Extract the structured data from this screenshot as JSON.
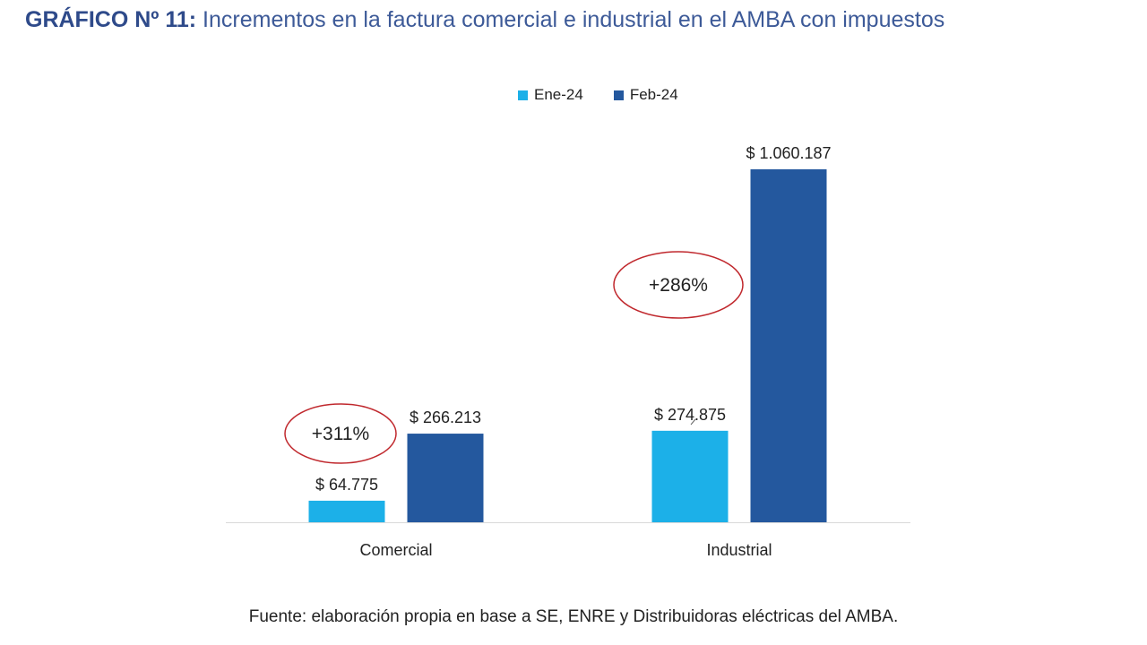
{
  "title": {
    "bold": "GRÁFICO Nº 11:",
    "text": " Incrementos en la factura comercial e industrial en el AMBA con impuestos"
  },
  "source": "Fuente: elaboración propia en base a SE, ENRE y Distribuidoras eléctricas del AMBA.",
  "colors": {
    "ene": "#1cb0e8",
    "feb": "#24589e",
    "annotation": "#c0282d",
    "title": "#3d5a98"
  },
  "chart_data": {
    "type": "bar",
    "categories": [
      "Comercial",
      "Industrial"
    ],
    "series": [
      {
        "name": "Ene-24",
        "values": [
          64775,
          274875
        ],
        "labels": [
          "$ 64.775",
          "$ 274.875"
        ]
      },
      {
        "name": "Feb-24",
        "values": [
          266213,
          1060187
        ],
        "labels": [
          "$ 266.213",
          "$ 1.060.187"
        ]
      }
    ],
    "annotations": [
      "+311%",
      "+286%"
    ],
    "ylim": [
      0,
      1200000
    ],
    "legend": "top-center",
    "grid": false,
    "xlabel": "",
    "ylabel": ""
  }
}
